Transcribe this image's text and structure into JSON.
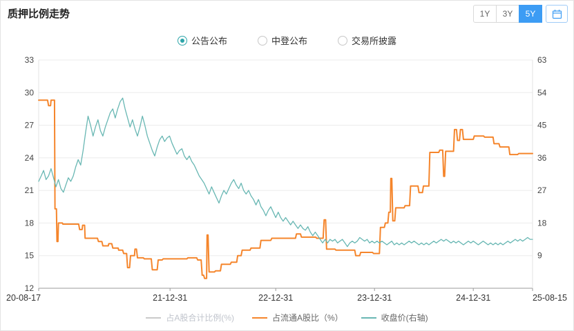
{
  "header": {
    "title": "质押比例走势",
    "range_buttons": [
      {
        "label": "1Y",
        "active": false
      },
      {
        "label": "3Y",
        "active": false
      },
      {
        "label": "5Y",
        "active": true
      }
    ],
    "active_button_color": "#3c9cf4",
    "calendar_icon": "calendar-icon"
  },
  "radios": [
    {
      "label": "公告公布",
      "selected": true
    },
    {
      "label": "中登公布",
      "selected": false
    },
    {
      "label": "交易所披露",
      "selected": false
    }
  ],
  "radio_selected_color": "#2da5a9",
  "chart_data": {
    "type": "line",
    "title": "质押比例走势",
    "grid": true,
    "legend_position": "bottom",
    "left_axis": {
      "min": 12,
      "max": 33,
      "ticks": [
        12,
        15,
        18,
        21,
        24,
        27,
        30,
        33
      ]
    },
    "right_axis": {
      "min": 0,
      "max": 63,
      "ticks": [
        9,
        18,
        27,
        36,
        45,
        54,
        63
      ]
    },
    "x_ticks": [
      {
        "label": "20-08-17",
        "t": 0
      },
      {
        "label": "21-12-31",
        "t": 0.266
      },
      {
        "label": "22-12-31",
        "t": 0.48
      },
      {
        "label": "23-12-31",
        "t": 0.68
      },
      {
        "label": "24-12-31",
        "t": 0.88
      },
      {
        "label": "25-08-15",
        "t": 1
      }
    ],
    "series": [
      {
        "name": "占A股合计比例(%)",
        "color": "#c9c9c9",
        "axis": "left",
        "visible": false,
        "points": []
      },
      {
        "name": "占流通A股比（%）",
        "color": "#f5852b",
        "axis": "left",
        "width": 2,
        "visible": true,
        "points": [
          [
            0.0,
            29.3
          ],
          [
            0.018,
            29.3
          ],
          [
            0.02,
            28.8
          ],
          [
            0.024,
            28.8
          ],
          [
            0.025,
            29.3
          ],
          [
            0.032,
            29.3
          ],
          [
            0.033,
            19.3
          ],
          [
            0.036,
            19.3
          ],
          [
            0.037,
            16.3
          ],
          [
            0.039,
            16.3
          ],
          [
            0.04,
            18.0
          ],
          [
            0.048,
            18.0
          ],
          [
            0.049,
            17.9
          ],
          [
            0.081,
            17.9
          ],
          [
            0.083,
            17.4
          ],
          [
            0.088,
            17.4
          ],
          [
            0.089,
            17.8
          ],
          [
            0.093,
            17.8
          ],
          [
            0.094,
            16.6
          ],
          [
            0.119,
            16.6
          ],
          [
            0.121,
            16.3
          ],
          [
            0.128,
            16.3
          ],
          [
            0.13,
            15.9
          ],
          [
            0.141,
            15.9
          ],
          [
            0.142,
            16.1
          ],
          [
            0.148,
            16.1
          ],
          [
            0.15,
            15.7
          ],
          [
            0.161,
            15.7
          ],
          [
            0.162,
            15.5
          ],
          [
            0.17,
            15.5
          ],
          [
            0.172,
            15.2
          ],
          [
            0.178,
            15.2
          ],
          [
            0.18,
            13.9
          ],
          [
            0.184,
            13.9
          ],
          [
            0.186,
            15.0
          ],
          [
            0.194,
            15.0
          ],
          [
            0.195,
            15.6
          ],
          [
            0.198,
            15.6
          ],
          [
            0.2,
            14.8
          ],
          [
            0.212,
            14.8
          ],
          [
            0.214,
            14.7
          ],
          [
            0.228,
            14.7
          ],
          [
            0.23,
            13.7
          ],
          [
            0.24,
            13.7
          ],
          [
            0.242,
            14.6
          ],
          [
            0.25,
            14.6
          ],
          [
            0.252,
            14.7
          ],
          [
            0.3,
            14.7
          ],
          [
            0.302,
            14.8
          ],
          [
            0.32,
            14.8
          ],
          [
            0.322,
            14.6
          ],
          [
            0.329,
            14.6
          ],
          [
            0.331,
            13.2
          ],
          [
            0.334,
            13.2
          ],
          [
            0.336,
            12.9
          ],
          [
            0.34,
            12.9
          ],
          [
            0.341,
            16.9
          ],
          [
            0.343,
            16.9
          ],
          [
            0.345,
            13.5
          ],
          [
            0.356,
            13.5
          ],
          [
            0.358,
            13.6
          ],
          [
            0.368,
            13.6
          ],
          [
            0.37,
            14.2
          ],
          [
            0.388,
            14.2
          ],
          [
            0.39,
            14.4
          ],
          [
            0.401,
            14.4
          ],
          [
            0.403,
            15.0
          ],
          [
            0.41,
            15.0
          ],
          [
            0.412,
            15.5
          ],
          [
            0.428,
            15.5
          ],
          [
            0.43,
            15.7
          ],
          [
            0.448,
            15.7
          ],
          [
            0.45,
            16.4
          ],
          [
            0.47,
            16.4
          ],
          [
            0.472,
            16.6
          ],
          [
            0.52,
            16.6
          ],
          [
            0.522,
            17.0
          ],
          [
            0.53,
            17.0
          ],
          [
            0.532,
            16.7
          ],
          [
            0.561,
            16.7
          ],
          [
            0.563,
            16.6
          ],
          [
            0.576,
            16.6
          ],
          [
            0.578,
            18.3
          ],
          [
            0.581,
            18.3
          ],
          [
            0.583,
            15.6
          ],
          [
            0.6,
            15.6
          ],
          [
            0.602,
            15.5
          ],
          [
            0.64,
            15.5
          ],
          [
            0.642,
            15.0
          ],
          [
            0.65,
            15.0
          ],
          [
            0.652,
            15.3
          ],
          [
            0.676,
            15.3
          ],
          [
            0.678,
            15.2
          ],
          [
            0.69,
            15.2
          ],
          [
            0.692,
            17.6
          ],
          [
            0.7,
            17.6
          ],
          [
            0.702,
            18.0
          ],
          [
            0.707,
            18.0
          ],
          [
            0.709,
            19.0
          ],
          [
            0.712,
            19.0
          ],
          [
            0.713,
            22.1
          ],
          [
            0.715,
            22.1
          ],
          [
            0.717,
            18.2
          ],
          [
            0.721,
            18.2
          ],
          [
            0.723,
            19.4
          ],
          [
            0.74,
            19.4
          ],
          [
            0.742,
            19.6
          ],
          [
            0.751,
            19.6
          ],
          [
            0.753,
            21.4
          ],
          [
            0.768,
            21.4
          ],
          [
            0.77,
            20.8
          ],
          [
            0.777,
            20.8
          ],
          [
            0.779,
            21.4
          ],
          [
            0.79,
            21.4
          ],
          [
            0.792,
            24.5
          ],
          [
            0.81,
            24.5
          ],
          [
            0.812,
            24.7
          ],
          [
            0.818,
            24.7
          ],
          [
            0.82,
            22.3
          ],
          [
            0.822,
            22.3
          ],
          [
            0.824,
            24.6
          ],
          [
            0.84,
            24.6
          ],
          [
            0.842,
            26.6
          ],
          [
            0.846,
            26.6
          ],
          [
            0.848,
            25.6
          ],
          [
            0.852,
            25.6
          ],
          [
            0.854,
            26.6
          ],
          [
            0.858,
            26.6
          ],
          [
            0.86,
            25.7
          ],
          [
            0.88,
            25.7
          ],
          [
            0.882,
            26.0
          ],
          [
            0.901,
            26.0
          ],
          [
            0.903,
            25.9
          ],
          [
            0.92,
            25.9
          ],
          [
            0.922,
            25.3
          ],
          [
            0.932,
            25.3
          ],
          [
            0.934,
            25.0
          ],
          [
            0.952,
            25.0
          ],
          [
            0.954,
            24.3
          ],
          [
            0.97,
            24.3
          ],
          [
            0.972,
            24.4
          ],
          [
            1.0,
            24.4
          ]
        ]
      },
      {
        "name": "收盘价(右轴)",
        "color": "#68b7b3",
        "axis": "right",
        "width": 1.3,
        "visible": true,
        "values": [
          29.5,
          31.0,
          32.5,
          30.0,
          31.0,
          33.0,
          30.5,
          28.0,
          30.0,
          27.5,
          26.5,
          28.5,
          30.5,
          29.5,
          31.0,
          33.5,
          35.5,
          34.0,
          38.0,
          43.0,
          47.5,
          45.0,
          42.0,
          44.5,
          46.5,
          43.5,
          42.0,
          44.5,
          46.5,
          48.5,
          49.5,
          47.0,
          49.5,
          51.5,
          52.5,
          49.5,
          47.0,
          44.5,
          46.5,
          44.0,
          42.0,
          44.5,
          47.5,
          45.0,
          42.0,
          40.0,
          38.0,
          36.5,
          39.0,
          41.0,
          42.0,
          40.5,
          41.5,
          42.0,
          40.0,
          38.5,
          37.0,
          38.0,
          38.5,
          36.5,
          35.5,
          36.5,
          35.0,
          34.0,
          32.5,
          31.0,
          30.0,
          29.0,
          27.5,
          26.0,
          28.0,
          26.5,
          25.0,
          23.5,
          25.5,
          27.0,
          26.0,
          27.5,
          29.0,
          30.0,
          28.5,
          27.5,
          29.0,
          27.0,
          26.0,
          27.0,
          25.5,
          24.5,
          23.0,
          24.5,
          22.5,
          21.5,
          20.0,
          21.5,
          22.5,
          21.0,
          19.5,
          21.0,
          19.5,
          18.5,
          19.5,
          18.5,
          17.5,
          18.5,
          17.5,
          16.5,
          17.5,
          16.5,
          16.0,
          17.0,
          15.5,
          14.5,
          15.5,
          14.5,
          13.5,
          12.5,
          13.5,
          12.5,
          13.5,
          13.0,
          13.5,
          12.5,
          13.0,
          13.5,
          12.5,
          11.5,
          12.5,
          13.0,
          12.5,
          13.0,
          14.0,
          13.5,
          13.0,
          13.5,
          12.5,
          13.0,
          12.5,
          13.0,
          12.5,
          13.0,
          12.5,
          12.0,
          12.5,
          13.0,
          12.0,
          12.5,
          12.0,
          12.5,
          12.0,
          12.5,
          13.0,
          12.5,
          13.0,
          12.5,
          12.0,
          12.5,
          12.0,
          12.5,
          12.0,
          12.5,
          13.0,
          12.5,
          13.0,
          13.5,
          13.0,
          13.5,
          13.0,
          12.5,
          13.0,
          12.5,
          13.0,
          12.5,
          12.0,
          12.5,
          13.0,
          12.5,
          13.0,
          12.5,
          12.0,
          12.5,
          13.0,
          12.5,
          12.0,
          12.5,
          12.0,
          12.5,
          12.0,
          12.5,
          12.0,
          12.5,
          13.0,
          12.5,
          13.0,
          13.5,
          13.0,
          13.5,
          13.0,
          13.5,
          14.0,
          13.5,
          13.5
        ]
      }
    ]
  }
}
